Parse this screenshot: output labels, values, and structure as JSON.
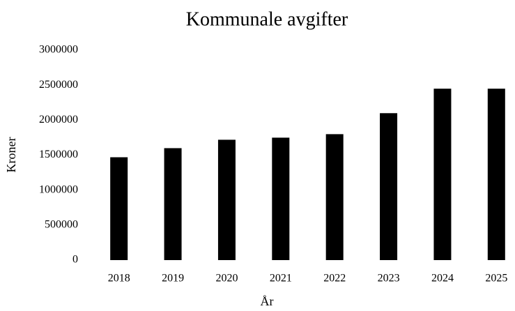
{
  "chart_data": {
    "type": "bar",
    "title": "Kommunale avgifter",
    "x_label": "År",
    "y_label": "Kroner",
    "categories": [
      "2018",
      "2019",
      "2020",
      "2021",
      "2022",
      "2023",
      "2024",
      "2025"
    ],
    "values": [
      1470000,
      1600000,
      1720000,
      1750000,
      1800000,
      2100000,
      2450000,
      2450000
    ],
    "color": "#000000",
    "ylim": [
      0,
      3000000
    ],
    "yticks": [
      0,
      500000,
      1000000,
      1500000,
      2000000,
      2500000,
      3000000
    ],
    "grid": false
  }
}
